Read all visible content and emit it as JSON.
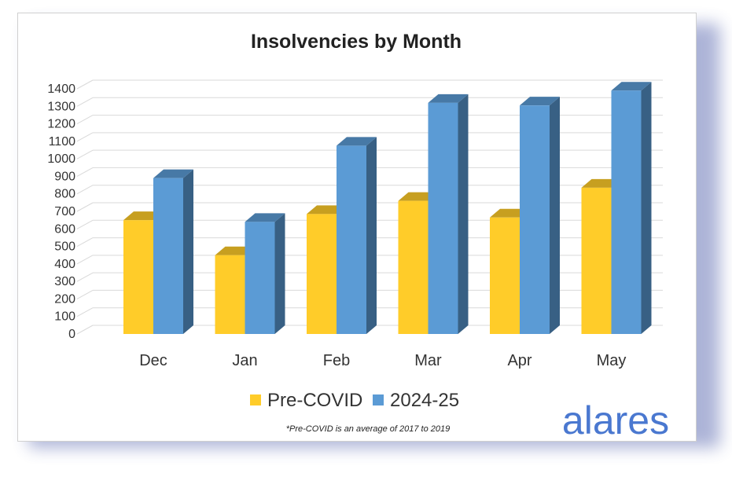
{
  "chart_data": {
    "type": "bar",
    "title": "Insolvencies by Month",
    "categories": [
      "Dec",
      "Jan",
      "Feb",
      "Mar",
      "Apr",
      "May"
    ],
    "series": [
      {
        "name": "Pre-COVID",
        "values": [
          650,
          450,
          685,
          760,
          665,
          835
        ],
        "color": "#ffcc29"
      },
      {
        "name": "2024-25",
        "values": [
          890,
          640,
          1075,
          1320,
          1305,
          1390
        ],
        "color": "#5b9bd5"
      }
    ],
    "ylim": [
      0,
      1400
    ],
    "yticks": [
      0,
      100,
      200,
      300,
      400,
      500,
      600,
      700,
      800,
      900,
      1000,
      1100,
      1200,
      1300,
      1400
    ],
    "grid": true,
    "legend": "bottom",
    "style": "3d-clustered-column"
  },
  "footnote": "*Pre-COVID is an average of 2017 to 2019",
  "brand": "alares"
}
